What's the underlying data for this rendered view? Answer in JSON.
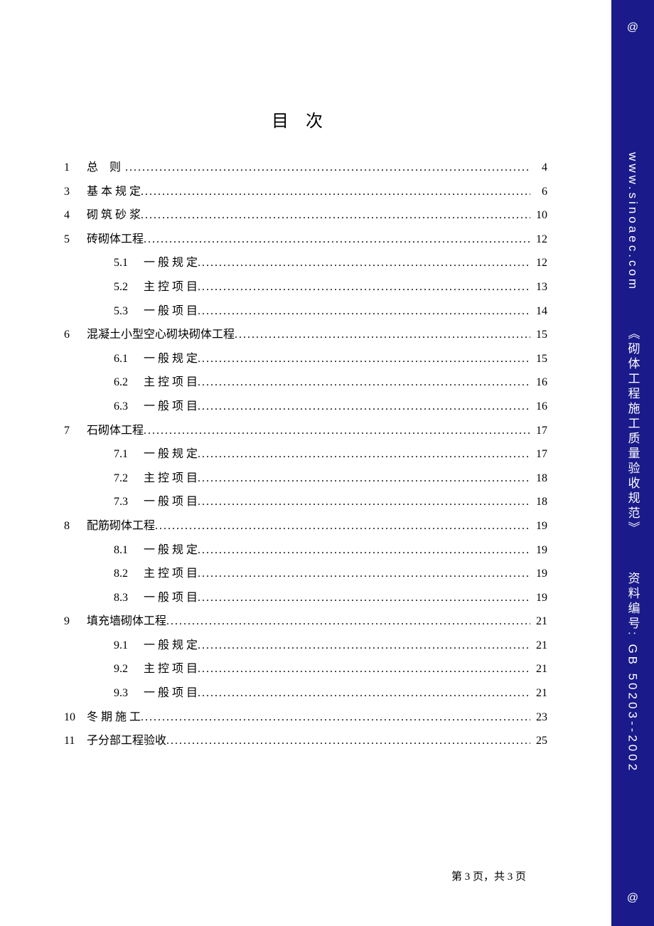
{
  "title": "目次",
  "sidebar": {
    "at_top": "@",
    "at_bottom": "@",
    "url": "www.sinoaec.com",
    "book_title": "《砌体工程施工质量验收规范》",
    "doc_label": "资料编号:  GB 50203--2002"
  },
  "footer": "第 3 页，共 3 页",
  "toc": [
    {
      "num": "1",
      "label": "总  则",
      "page": "4",
      "spaced": true
    },
    {
      "num": "3",
      "label": "基 本 规 定",
      "page": "6",
      "spaced": false
    },
    {
      "num": "4",
      "label": "砌 筑 砂 浆",
      "page": "10",
      "spaced": false
    },
    {
      "num": "5",
      "label": "砖砌体工程",
      "page": "12",
      "spaced": false,
      "children": [
        {
          "subnum": "5.1",
          "label": "一 般 规 定",
          "page": "12"
        },
        {
          "subnum": "5.2",
          "label": "主 控 项 目",
          "page": "13"
        },
        {
          "subnum": "5.3",
          "label": "一 般 项 目",
          "page": "14"
        }
      ]
    },
    {
      "num": "6",
      "label": "混凝土小型空心砌块砌体工程",
      "page": "15",
      "spaced": false,
      "children": [
        {
          "subnum": "6.1",
          "label": "一 般 规 定",
          "page": "15"
        },
        {
          "subnum": "6.2",
          "label": "主 控 项 目",
          "page": "16"
        },
        {
          "subnum": "6.3",
          "label": "一 般 项 目",
          "page": "16"
        }
      ]
    },
    {
      "num": "7",
      "label": "石砌体工程",
      "page": "17",
      "spaced": false,
      "children": [
        {
          "subnum": "7.1",
          "label": "一 般 规 定",
          "page": "17"
        },
        {
          "subnum": "7.2",
          "label": "主 控 项 目",
          "page": "18"
        },
        {
          "subnum": "7.3",
          "label": "一 般 项 目",
          "page": "18"
        }
      ]
    },
    {
      "num": "8",
      "label": "配筋砌体工程",
      "page": "19",
      "spaced": false,
      "children": [
        {
          "subnum": "8.1",
          "label": "一 般 规 定",
          "page": "19"
        },
        {
          "subnum": "8.2",
          "label": "主 控 项 目",
          "page": "19"
        },
        {
          "subnum": "8.3",
          "label": "一 般 项 目",
          "page": "19"
        }
      ]
    },
    {
      "num": "9",
      "label": "填充墙砌体工程",
      "page": "21",
      "spaced": false,
      "children": [
        {
          "subnum": "9.1",
          "label": "一 般 规 定",
          "page": "21"
        },
        {
          "subnum": "9.2",
          "label": "主 控 项 目",
          "page": "21"
        },
        {
          "subnum": "9.3",
          "label": "一 般 项 目",
          "page": "21"
        }
      ]
    },
    {
      "num": "10",
      "label": "冬 期 施 工",
      "page": "23",
      "spaced": false
    },
    {
      "num": "11",
      "label": "子分部工程验收",
      "page": "25",
      "spaced": false
    }
  ]
}
